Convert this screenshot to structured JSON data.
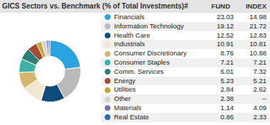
{
  "chart_data": {
    "type": "pie",
    "title": "GICS Sectors vs. Benchmark (% of Total Investments)#",
    "categories": [
      "Financials",
      "Information Technology",
      "Health Care",
      "Industrials",
      "Consumer Discretionary",
      "Consumer Staples",
      "Comm. Services",
      "Energy",
      "Utilities",
      "Other",
      "Materials",
      "Real Estate"
    ],
    "colors": [
      "#2aa3de",
      "#b9babc",
      "#0f4c7c",
      "#efe7cf",
      "#d4b66c",
      "#3fb2a6",
      "#2b7f76",
      "#a34b33",
      "#c9a52e",
      "#d2d2d2",
      "#7d70b6",
      "#2b69b3"
    ],
    "series": [
      {
        "name": "FUND",
        "values": [
          23.03,
          19.12,
          12.52,
          10.91,
          8.76,
          7.21,
          6.01,
          5.23,
          2.84,
          2.38,
          1.14,
          0.86
        ]
      },
      {
        "name": "INDEX",
        "values": [
          14.98,
          21.72,
          12.83,
          10.81,
          10.88,
          7.21,
          7.32,
          5.21,
          2.62,
          null,
          4.09,
          2.33
        ],
        "value_labels": [
          "14.98",
          "21.72",
          "12.83",
          "10.81",
          "10.88",
          "7.21",
          "7.32",
          "5.21",
          "2.62",
          "--",
          "4.09",
          "2.33"
        ]
      }
    ]
  }
}
